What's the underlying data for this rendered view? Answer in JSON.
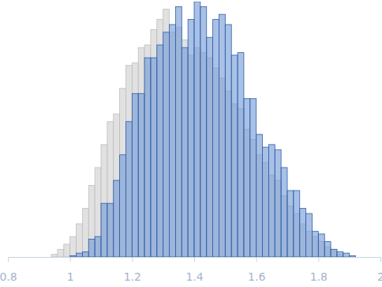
{
  "chart_data": {
    "type": "histogram",
    "bins": [
      0.94,
      0.96,
      0.98,
      1.0,
      1.02,
      1.04,
      1.06,
      1.08,
      1.1,
      1.12,
      1.14,
      1.16,
      1.18,
      1.2,
      1.22,
      1.24,
      1.26,
      1.28,
      1.3,
      1.32,
      1.34,
      1.36,
      1.38,
      1.4,
      1.42,
      1.44,
      1.46,
      1.48,
      1.5,
      1.52,
      1.54,
      1.56,
      1.58,
      1.6,
      1.62,
      1.64,
      1.66,
      1.68,
      1.7,
      1.72,
      1.74,
      1.76,
      1.78,
      1.8,
      1.82,
      1.84,
      1.86,
      1.88,
      1.9,
      1.92
    ],
    "series": [
      {
        "color": "#d9d9d9",
        "values": [
          1,
          3,
          5,
          8,
          13,
          19,
          28,
          35,
          44,
          53,
          56,
          66,
          75,
          76,
          82,
          83,
          89,
          93,
          97,
          88,
          90,
          85,
          79,
          82,
          80,
          78,
          74,
          70,
          65,
          60,
          58,
          50,
          46,
          40,
          37,
          32,
          30,
          24,
          20,
          17,
          13,
          10,
          8,
          6,
          4,
          3,
          1,
          0,
          0
        ]
      },
      {
        "color": "#6f97d6",
        "values": [
          0,
          0,
          0,
          0.5,
          1.5,
          2,
          7,
          8,
          21,
          21,
          30,
          40,
          53,
          64,
          64,
          78,
          78,
          83,
          88,
          91,
          98,
          82,
          93,
          100,
          98,
          86,
          93,
          95,
          91,
          79,
          80,
          62,
          62,
          48,
          43,
          44,
          42,
          35,
          26,
          26,
          19,
          17,
          10,
          9,
          6,
          3,
          2,
          1.5,
          0.5
        ]
      }
    ],
    "xlim": [
      0.8,
      2
    ],
    "xticks": [
      0.8,
      1,
      1.2,
      1.4,
      1.6,
      1.8,
      2
    ],
    "ylim": [
      0,
      100
    ],
    "tick_labels": "x"
  }
}
